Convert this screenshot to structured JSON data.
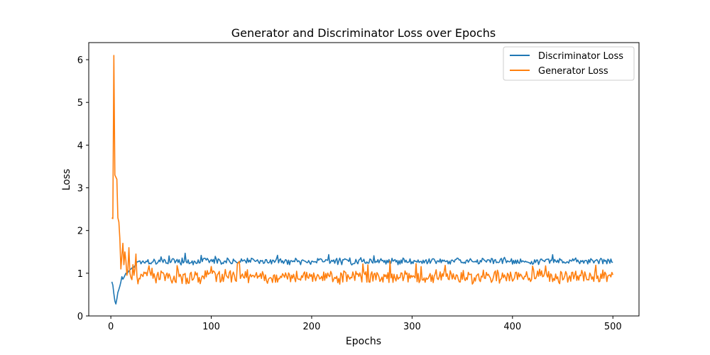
{
  "chart_data": {
    "type": "line",
    "title": "Generator and Discriminator Loss over Epochs",
    "xlabel": "Epochs",
    "ylabel": "Loss",
    "xlim": [
      -22,
      526
    ],
    "ylim": [
      0,
      6.4
    ],
    "xticks": [
      0,
      100,
      200,
      300,
      400,
      500
    ],
    "yticks": [
      0,
      1,
      2,
      3,
      4,
      5,
      6
    ],
    "grid": false,
    "legend_position": "top-right",
    "x": {
      "start": 1,
      "end": 500,
      "step": 1
    },
    "series": [
      {
        "name": "Discriminator Loss",
        "color": "#1f77b4",
        "early_values": [
          0.8,
          0.72,
          0.52,
          0.35,
          0.28,
          0.4,
          0.55,
          0.62,
          0.7,
          0.8,
          0.92,
          0.86,
          0.9,
          0.95,
          1.0,
          0.98,
          1.02,
          1.05,
          1.08,
          1.1,
          1.12,
          1.15,
          1.14,
          1.18,
          1.2
        ],
        "steady_level": 1.28,
        "noise_amplitude": 0.06
      },
      {
        "name": "Generator Loss",
        "color": "#ff7f0e",
        "early_values": [
          2.3,
          2.28,
          6.1,
          3.3,
          3.25,
          3.2,
          2.3,
          2.2,
          1.8,
          1.1,
          1.4,
          1.7,
          1.2,
          1.5,
          1.3,
          0.95,
          1.1,
          1.6,
          1.0,
          0.9,
          0.85,
          1.2,
          0.95,
          1.1,
          1.45
        ],
        "steady_level": 0.92,
        "noise_amplitude": 0.12
      }
    ]
  }
}
